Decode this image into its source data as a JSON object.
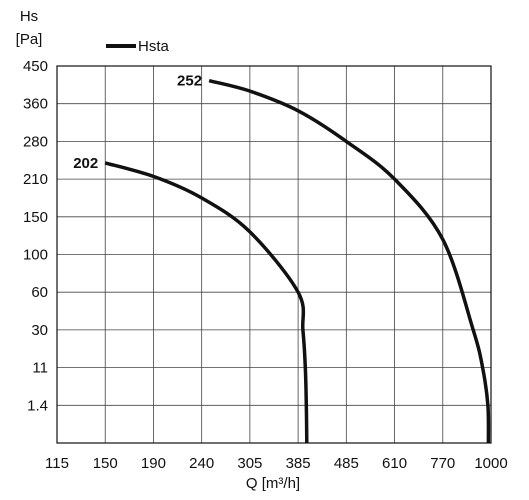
{
  "chart_data": {
    "type": "line",
    "title": "",
    "ylabel_line1": "Hs",
    "ylabel_line2": "[Pa]",
    "xlabel": "Q [m³/h]",
    "legend": {
      "label": "Hsta",
      "position": "top-left"
    },
    "grid": true,
    "x_tick_labels": [
      "115",
      "150",
      "190",
      "240",
      "305",
      "385",
      "485",
      "610",
      "770",
      "1000"
    ],
    "y_tick_labels": [
      "450",
      "360",
      "280",
      "210",
      "150",
      "100",
      "60",
      "30",
      "11",
      "1.4"
    ],
    "series": [
      {
        "name": "202",
        "points": [
          [
            150,
            240
          ],
          [
            190,
            215
          ],
          [
            240,
            180
          ],
          [
            305,
            130
          ],
          [
            385,
            60
          ],
          [
            395,
            30
          ],
          [
            400,
            11
          ],
          [
            402,
            1.4
          ]
        ]
      },
      {
        "name": "252",
        "points": [
          [
            250,
            415
          ],
          [
            305,
            390
          ],
          [
            385,
            345
          ],
          [
            485,
            280
          ],
          [
            610,
            210
          ],
          [
            770,
            120
          ],
          [
            915,
            30
          ],
          [
            960,
            11
          ],
          [
            985,
            1.4
          ]
        ]
      }
    ]
  }
}
